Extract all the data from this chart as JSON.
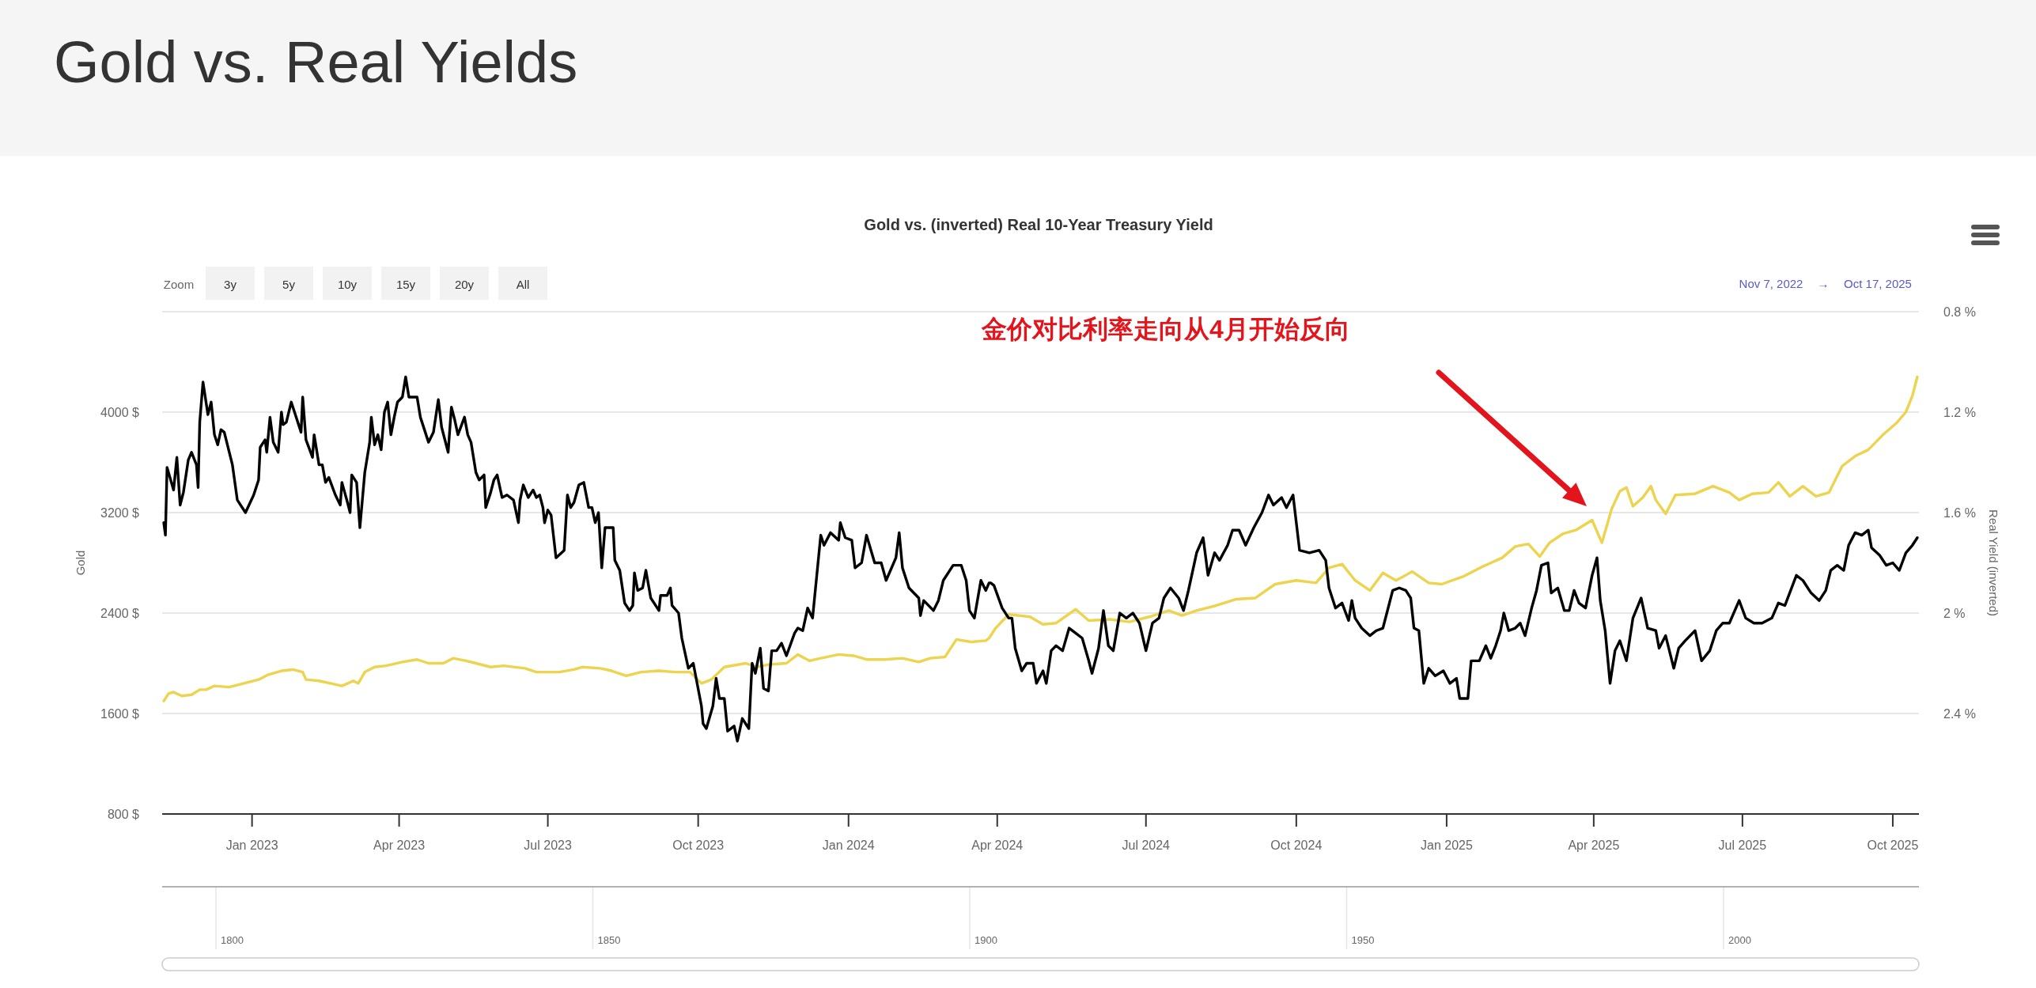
{
  "chart_data": {
    "type": "line",
    "title": "Gold vs. Real Yields",
    "subtitle": "Gold vs. (inverted) Real 10-Year Treasury Yield",
    "ylabel": "Gold",
    "y2label": "Real Yield (inverted)",
    "xlim": [
      "2022-11-07",
      "2025-10-17"
    ],
    "xticks": [
      {
        "value": "2023-01-01",
        "label": "Jan 2023"
      },
      {
        "value": "2023-04-01",
        "label": "Apr 2023"
      },
      {
        "value": "2023-07-01",
        "label": "Jul 2023"
      },
      {
        "value": "2023-10-01",
        "label": "Oct 2023"
      },
      {
        "value": "2024-01-01",
        "label": "Jan 2024"
      },
      {
        "value": "2024-04-01",
        "label": "Apr 2024"
      },
      {
        "value": "2024-07-01",
        "label": "Jul 2024"
      },
      {
        "value": "2024-10-01",
        "label": "Oct 2024"
      },
      {
        "value": "2025-01-01",
        "label": "Jan 2025"
      },
      {
        "value": "2025-04-01",
        "label": "Apr 2025"
      },
      {
        "value": "2025-07-01",
        "label": "Jul 2025"
      },
      {
        "value": "2025-10-01",
        "label": "Oct 2025"
      }
    ],
    "ylim": [
      800,
      4800
    ],
    "yticks": [
      {
        "value": 800,
        "label": "800 $"
      },
      {
        "value": 1600,
        "label": "1600 $"
      },
      {
        "value": 2400,
        "label": "2400 $"
      },
      {
        "value": 3200,
        "label": "3200 $"
      },
      {
        "value": 4000,
        "label": "4000 $"
      },
      {
        "value": 4800,
        "label": null
      }
    ],
    "y2lim": [
      2.8,
      0.8
    ],
    "y2ticks": [
      {
        "value": 2.8,
        "label": null
      },
      {
        "value": 2.4,
        "label": "2.4 %"
      },
      {
        "value": 2,
        "label": "2 %"
      },
      {
        "value": 1.6,
        "label": "1.6 %"
      },
      {
        "value": 1.2,
        "label": "1.2 %"
      },
      {
        "value": 0.8,
        "label": "0.8 %"
      }
    ],
    "grid": "y",
    "marker": "none",
    "line_style": "solid",
    "annotations": [
      "金价对比利率走向从4月开始反向",
      "Zoom",
      "3y",
      "5y",
      "10y",
      "15y",
      "20y",
      "All",
      "Nov 7, 2022",
      "→",
      "Oct 17, 2025",
      "1800",
      "1850",
      "1900",
      "1950",
      "2000"
    ],
    "series": [
      {
        "color": "#ecd44f",
        "x": [
          "2022-11-08",
          "2022-11-11",
          "2022-11-14",
          "2022-11-19",
          "2022-11-25",
          "2022-11-30",
          "2022-12-04",
          "2022-12-09",
          "2022-12-18",
          "2022-12-27",
          "2023-01-05",
          "2023-01-11",
          "2023-01-19",
          "2023-01-26",
          "2023-02-01",
          "2023-02-03",
          "2023-02-11",
          "2023-02-18",
          "2023-02-25",
          "2023-03-04",
          "2023-03-07",
          "2023-03-11",
          "2023-03-17",
          "2023-03-24",
          "2023-04-03",
          "2023-04-12",
          "2023-04-19",
          "2023-04-28",
          "2023-05-04",
          "2023-05-12",
          "2023-05-18",
          "2023-05-27",
          "2023-06-04",
          "2023-06-17",
          "2023-06-24",
          "2023-07-08",
          "2023-07-17",
          "2023-07-22",
          "2023-08-02",
          "2023-08-09",
          "2023-08-18",
          "2023-08-27",
          "2023-09-07",
          "2023-09-17",
          "2023-09-26",
          "2023-10-03",
          "2023-10-09",
          "2023-10-17",
          "2023-10-30",
          "2023-11-06",
          "2023-11-13",
          "2023-11-24",
          "2023-12-01",
          "2023-12-08",
          "2023-12-15",
          "2023-12-26",
          "2024-01-04",
          "2024-01-12",
          "2024-01-23",
          "2024-02-03",
          "2024-02-13",
          "2024-02-20",
          "2024-02-29",
          "2024-03-07",
          "2024-03-16",
          "2024-03-25",
          "2024-03-27",
          "2024-03-31",
          "2024-04-08",
          "2024-04-21",
          "2024-04-29",
          "2024-05-07",
          "2024-05-19",
          "2024-05-27",
          "2024-06-09",
          "2024-06-21",
          "2024-07-03",
          "2024-07-15",
          "2024-07-23",
          "2024-08-01",
          "2024-08-13",
          "2024-08-25",
          "2024-09-06",
          "2024-09-18",
          "2024-10-01",
          "2024-10-13",
          "2024-10-21",
          "2024-10-29",
          "2024-11-06",
          "2024-11-15",
          "2024-11-23",
          "2024-12-01",
          "2024-12-11",
          "2024-12-21",
          "2024-12-29",
          "2025-01-11",
          "2025-01-23",
          "2025-02-04",
          "2025-02-12",
          "2025-02-20",
          "2025-02-27",
          "2025-03-05",
          "2025-03-13",
          "2025-03-21",
          "2025-03-31",
          "2025-04-06",
          "2025-04-12",
          "2025-04-17",
          "2025-04-21",
          "2025-04-25",
          "2025-05-01",
          "2025-05-06",
          "2025-05-09",
          "2025-05-15",
          "2025-05-21",
          "2025-06-02",
          "2025-06-13",
          "2025-06-23",
          "2025-06-29",
          "2025-07-07",
          "2025-07-17",
          "2025-07-23",
          "2025-07-30",
          "2025-08-07",
          "2025-08-15",
          "2025-08-23",
          "2025-08-31",
          "2025-09-08",
          "2025-09-16",
          "2025-09-25",
          "2025-10-03",
          "2025-10-09",
          "2025-10-13",
          "2025-10-16"
        ],
        "values": [
          1700,
          1760,
          1770,
          1740,
          1750,
          1790,
          1790,
          1820,
          1810,
          1840,
          1870,
          1910,
          1940,
          1950,
          1930,
          1870,
          1860,
          1840,
          1820,
          1860,
          1840,
          1930,
          1970,
          1980,
          2010,
          2030,
          2000,
          2000,
          2040,
          2020,
          2000,
          1970,
          1980,
          1960,
          1930,
          1930,
          1950,
          1970,
          1960,
          1940,
          1900,
          1930,
          1940,
          1930,
          1930,
          1840,
          1870,
          1970,
          2000,
          1970,
          1990,
          2000,
          2070,
          2020,
          2040,
          2070,
          2060,
          2030,
          2030,
          2040,
          2010,
          2040,
          2050,
          2190,
          2170,
          2180,
          2200,
          2280,
          2390,
          2370,
          2310,
          2320,
          2430,
          2340,
          2350,
          2330,
          2370,
          2420,
          2380,
          2420,
          2460,
          2510,
          2520,
          2630,
          2660,
          2640,
          2760,
          2790,
          2660,
          2580,
          2720,
          2660,
          2730,
          2640,
          2630,
          2690,
          2770,
          2840,
          2930,
          2950,
          2850,
          2960,
          3030,
          3060,
          3140,
          2960,
          3230,
          3370,
          3400,
          3250,
          3320,
          3410,
          3300,
          3190,
          3340,
          3350,
          3410,
          3360,
          3300,
          3350,
          3360,
          3440,
          3330,
          3410,
          3330,
          3360,
          3570,
          3650,
          3700,
          3820,
          3910,
          4000,
          4130,
          4280
        ]
      },
      {
        "color": "#000000",
        "axis": "y2",
        "x": [
          "2022-11-08",
          "2022-11-09",
          "2022-11-10",
          "2022-11-14",
          "2022-11-16",
          "2022-11-18",
          "2022-11-20",
          "2022-11-23",
          "2022-11-25",
          "2022-11-28",
          "2022-11-29",
          "2022-11-30",
          "2022-12-02",
          "2022-12-05",
          "2022-12-07",
          "2022-12-09",
          "2022-12-11",
          "2022-12-13",
          "2022-12-15",
          "2022-12-20",
          "2022-12-23",
          "2022-12-28",
          "2023-01-02",
          "2023-01-05",
          "2023-01-06",
          "2023-01-09",
          "2023-01-10",
          "2023-01-12",
          "2023-01-14",
          "2023-01-17",
          "2023-01-19",
          "2023-01-20",
          "2023-01-22",
          "2023-01-25",
          "2023-01-27",
          "2023-01-31",
          "2023-02-01",
          "2023-02-03",
          "2023-02-07",
          "2023-02-08",
          "2023-02-11",
          "2023-02-13",
          "2023-02-15",
          "2023-02-17",
          "2023-02-21",
          "2023-02-24",
          "2023-02-25",
          "2023-02-28",
          "2023-03-02",
          "2023-03-03",
          "2023-03-06",
          "2023-03-08",
          "2023-03-11",
          "2023-03-14",
          "2023-03-15",
          "2023-03-17",
          "2023-03-19",
          "2023-03-21",
          "2023-03-23",
          "2023-03-25",
          "2023-03-27",
          "2023-03-29",
          "2023-03-31",
          "2023-04-03",
          "2023-04-05",
          "2023-04-07",
          "2023-04-12",
          "2023-04-14",
          "2023-04-19",
          "2023-04-22",
          "2023-04-25",
          "2023-04-27",
          "2023-05-01",
          "2023-05-03",
          "2023-05-05",
          "2023-05-07",
          "2023-05-11",
          "2023-05-13",
          "2023-05-15",
          "2023-05-18",
          "2023-05-20",
          "2023-05-23",
          "2023-05-24",
          "2023-05-27",
          "2023-05-29",
          "2023-05-31",
          "2023-06-03",
          "2023-06-06",
          "2023-06-10",
          "2023-06-13",
          "2023-06-14",
          "2023-06-16",
          "2023-06-19",
          "2023-06-22",
          "2023-06-24",
          "2023-06-26",
          "2023-06-28",
          "2023-06-29",
          "2023-07-01",
          "2023-07-03",
          "2023-07-06",
          "2023-07-11",
          "2023-07-13",
          "2023-07-15",
          "2023-07-17",
          "2023-07-20",
          "2023-07-23",
          "2023-07-26",
          "2023-07-28",
          "2023-07-30",
          "2023-08-01",
          "2023-08-03",
          "2023-08-05",
          "2023-08-10",
          "2023-08-11",
          "2023-08-14",
          "2023-08-17",
          "2023-08-20",
          "2023-08-22",
          "2023-08-23",
          "2023-08-25",
          "2023-08-28",
          "2023-08-30",
          "2023-09-02",
          "2023-09-07",
          "2023-09-08",
          "2023-09-12",
          "2023-09-14",
          "2023-09-15",
          "2023-09-19",
          "2023-09-21",
          "2023-09-25",
          "2023-09-28",
          "2023-10-03",
          "2023-10-04",
          "2023-10-06",
          "2023-10-10",
          "2023-10-12",
          "2023-10-14",
          "2023-10-17",
          "2023-10-19",
          "2023-10-21",
          "2023-10-23",
          "2023-10-25",
          "2023-10-28",
          "2023-10-30",
          "2023-11-01",
          "2023-11-03",
          "2023-11-05",
          "2023-11-08",
          "2023-11-10",
          "2023-11-13",
          "2023-11-15",
          "2023-11-18",
          "2023-11-21",
          "2023-11-24",
          "2023-11-29",
          "2023-12-01",
          "2023-12-04",
          "2023-12-07",
          "2023-12-10",
          "2023-12-15",
          "2023-12-17",
          "2023-12-21",
          "2023-12-26",
          "2023-12-27",
          "2023-12-30",
          "2024-01-03",
          "2024-01-05",
          "2024-01-09",
          "2024-01-12",
          "2024-01-17",
          "2024-01-21",
          "2024-01-24",
          "2024-01-30",
          "2024-02-01",
          "2024-02-03",
          "2024-02-07",
          "2024-02-13",
          "2024-02-14",
          "2024-02-16",
          "2024-02-22",
          "2024-02-25",
          "2024-02-28",
          "2024-03-05",
          "2024-03-10",
          "2024-03-13",
          "2024-03-15",
          "2024-03-18",
          "2024-03-22",
          "2024-03-25",
          "2024-03-27",
          "2024-03-28",
          "2024-03-30",
          "2024-04-04",
          "2024-04-08",
          "2024-04-10",
          "2024-04-12",
          "2024-04-16",
          "2024-04-19",
          "2024-04-23",
          "2024-04-25",
          "2024-04-29",
          "2024-05-01",
          "2024-05-04",
          "2024-05-07",
          "2024-05-11",
          "2024-05-15",
          "2024-05-19",
          "2024-05-23",
          "2024-05-27",
          "2024-05-29",
          "2024-06-02",
          "2024-06-05",
          "2024-06-08",
          "2024-06-11",
          "2024-06-15",
          "2024-06-19",
          "2024-06-23",
          "2024-06-27",
          "2024-07-01",
          "2024-07-05",
          "2024-07-09",
          "2024-07-12",
          "2024-07-16",
          "2024-07-21",
          "2024-07-24",
          "2024-07-27",
          "2024-08-01",
          "2024-08-05",
          "2024-08-08",
          "2024-08-12",
          "2024-08-15",
          "2024-08-20",
          "2024-08-23",
          "2024-08-27",
          "2024-08-31",
          "2024-09-05",
          "2024-09-10",
          "2024-09-14",
          "2024-09-17",
          "2024-09-22",
          "2024-09-25",
          "2024-09-29",
          "2024-10-03",
          "2024-10-09",
          "2024-10-15",
          "2024-10-19",
          "2024-10-21",
          "2024-10-25",
          "2024-10-29",
          "2024-11-02",
          "2024-11-04",
          "2024-11-06",
          "2024-11-10",
          "2024-11-15",
          "2024-11-19",
          "2024-11-23",
          "2024-11-27",
          "2024-11-29",
          "2024-12-03",
          "2024-12-07",
          "2024-12-10",
          "2024-12-12",
          "2024-12-15",
          "2024-12-18",
          "2024-12-21",
          "2024-12-25",
          "2024-12-30",
          "2025-01-03",
          "2025-01-07",
          "2025-01-09",
          "2025-01-14",
          "2025-01-16",
          "2025-01-21",
          "2025-01-25",
          "2025-01-28",
          "2025-01-31",
          "2025-02-03",
          "2025-02-05",
          "2025-02-08",
          "2025-02-12",
          "2025-02-15",
          "2025-02-18",
          "2025-02-22",
          "2025-02-25",
          "2025-02-28",
          "2025-03-04",
          "2025-03-06",
          "2025-03-10",
          "2025-03-14",
          "2025-03-17",
          "2025-03-20",
          "2025-03-23",
          "2025-03-27",
          "2025-03-31",
          "2025-04-03",
          "2025-04-05",
          "2025-04-08",
          "2025-04-11",
          "2025-04-14",
          "2025-04-17",
          "2025-04-21",
          "2025-04-25",
          "2025-04-30",
          "2025-05-04",
          "2025-05-09",
          "2025-05-11",
          "2025-05-15",
          "2025-05-20",
          "2025-05-23",
          "2025-05-27",
          "2025-06-02",
          "2025-06-06",
          "2025-06-11",
          "2025-06-15",
          "2025-06-19",
          "2025-06-23",
          "2025-06-29",
          "2025-07-03",
          "2025-07-08",
          "2025-07-13",
          "2025-07-19",
          "2025-07-23",
          "2025-07-27",
          "2025-08-03",
          "2025-08-07",
          "2025-08-12",
          "2025-08-17",
          "2025-08-21",
          "2025-08-24",
          "2025-08-28",
          "2025-09-01",
          "2025-09-04",
          "2025-09-08",
          "2025-09-12",
          "2025-09-16",
          "2025-09-18",
          "2025-09-23",
          "2025-09-27",
          "2025-10-01",
          "2025-10-05",
          "2025-10-09",
          "2025-10-13",
          "2025-10-16"
        ],
        "values": [
          1.64,
          1.69,
          1.42,
          1.51,
          1.38,
          1.57,
          1.52,
          1.39,
          1.36,
          1.41,
          1.5,
          1.24,
          1.08,
          1.21,
          1.16,
          1.29,
          1.33,
          1.27,
          1.28,
          1.41,
          1.55,
          1.6,
          1.53,
          1.47,
          1.34,
          1.31,
          1.36,
          1.22,
          1.32,
          1.36,
          1.2,
          1.25,
          1.24,
          1.16,
          1.2,
          1.28,
          1.14,
          1.31,
          1.38,
          1.29,
          1.41,
          1.41,
          1.48,
          1.46,
          1.53,
          1.57,
          1.48,
          1.55,
          1.6,
          1.45,
          1.48,
          1.66,
          1.44,
          1.32,
          1.22,
          1.33,
          1.29,
          1.35,
          1.2,
          1.16,
          1.29,
          1.22,
          1.16,
          1.14,
          1.06,
          1.14,
          1.14,
          1.22,
          1.32,
          1.28,
          1.15,
          1.26,
          1.36,
          1.18,
          1.23,
          1.29,
          1.22,
          1.29,
          1.32,
          1.44,
          1.47,
          1.45,
          1.58,
          1.52,
          1.47,
          1.45,
          1.54,
          1.53,
          1.55,
          1.64,
          1.55,
          1.49,
          1.54,
          1.51,
          1.54,
          1.53,
          1.58,
          1.64,
          1.59,
          1.61,
          1.78,
          1.75,
          1.53,
          1.58,
          1.56,
          1.49,
          1.48,
          1.58,
          1.58,
          1.64,
          1.6,
          1.82,
          1.66,
          1.66,
          1.79,
          1.83,
          1.96,
          1.99,
          1.97,
          1.84,
          1.91,
          1.9,
          1.83,
          1.94,
          1.99,
          1.93,
          1.93,
          1.9,
          1.97,
          2.0,
          2.1,
          2.22,
          2.2,
          2.37,
          2.44,
          2.46,
          2.37,
          2.26,
          2.34,
          2.34,
          2.47,
          2.46,
          2.45,
          2.51,
          2.42,
          2.44,
          2.46,
          2.2,
          2.24,
          2.14,
          2.3,
          2.31,
          2.15,
          2.15,
          2.12,
          2.17,
          2.08,
          2.06,
          2.07,
          1.98,
          2.02,
          1.69,
          1.73,
          1.68,
          1.71,
          1.64,
          1.7,
          1.71,
          1.82,
          1.8,
          1.69,
          1.8,
          1.8,
          1.87,
          1.78,
          1.68,
          1.82,
          1.9,
          1.94,
          2.01,
          1.95,
          1.99,
          1.95,
          1.87,
          1.81,
          1.81,
          1.87,
          1.99,
          2.02,
          1.87,
          1.91,
          1.88,
          1.88,
          1.89,
          1.98,
          2.02,
          2.02,
          2.14,
          2.23,
          2.2,
          2.2,
          2.28,
          2.23,
          2.28,
          2.15,
          2.13,
          2.15,
          2.06,
          2.08,
          2.1,
          2.19,
          2.24,
          2.14,
          1.99,
          2.13,
          2.15,
          2.0,
          2.02,
          2.0,
          2.04,
          2.15,
          2.04,
          2.02,
          1.94,
          1.9,
          1.94,
          1.99,
          1.91,
          1.76,
          1.7,
          1.85,
          1.76,
          1.79,
          1.73,
          1.67,
          1.67,
          1.73,
          1.66,
          1.6,
          1.53,
          1.57,
          1.54,
          1.58,
          1.53,
          1.75,
          1.76,
          1.75,
          1.79,
          1.9,
          1.98,
          1.96,
          2.03,
          1.95,
          2.02,
          2.06,
          2.09,
          2.07,
          2.06,
          1.96,
          1.91,
          1.9,
          1.91,
          1.94,
          2.06,
          2.07,
          2.28,
          2.22,
          2.25,
          2.23,
          2.28,
          2.26,
          2.34,
          2.34,
          2.19,
          2.19,
          2.13,
          2.18,
          2.13,
          2.07,
          2.0,
          2.07,
          2.06,
          2.04,
          2.09,
          1.98,
          1.91,
          1.81,
          1.8,
          1.92,
          1.9,
          1.99,
          1.99,
          1.91,
          1.96,
          1.98,
          1.85,
          1.78,
          1.95,
          2.07,
          2.28,
          2.15,
          2.11,
          2.19,
          2.02,
          1.94,
          2.06,
          2.07,
          2.14,
          2.09,
          2.22,
          2.14,
          2.11,
          2.07,
          2.19,
          2.15,
          2.07,
          2.04,
          2.04,
          1.95,
          2.02,
          2.04,
          2.04,
          2.02,
          1.96,
          1.97,
          1.85,
          1.87,
          1.92,
          1.95,
          1.91,
          1.83,
          1.81,
          1.83,
          1.73,
          1.68,
          1.69,
          1.67,
          1.74,
          1.77,
          1.81,
          1.8,
          1.83,
          1.76,
          1.73,
          1.7
        ]
      }
    ]
  }
}
